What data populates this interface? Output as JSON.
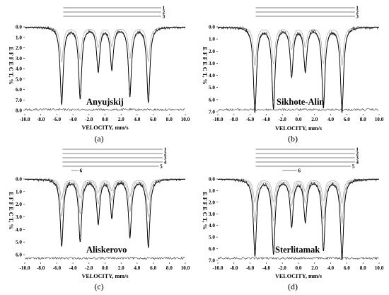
{
  "chart_data": [
    {
      "type": "line",
      "panel_caption": "(a)",
      "title": "Anyujskij",
      "xlabel": "VELOCITY, mm/s",
      "ylabel": "E F F E C T, %",
      "xlim": [
        -10.0,
        10.0
      ],
      "ylim": [
        0.0,
        8.0
      ],
      "x_ticks": [
        "-10.0",
        "-8.0",
        "-6.0",
        "-4.0",
        "-2.0",
        "0.0",
        "2.0",
        "4.0",
        "6.0",
        "8.0",
        "10.0"
      ],
      "y_ticks": [
        "0.0",
        "1.0",
        "2.0",
        "3.0",
        "4.0",
        "5.0",
        "6.0",
        "7.0",
        "8.0"
      ],
      "components": [
        "1",
        "2",
        "3"
      ],
      "component_lines": [
        {
          "label": "1",
          "x_start": -5.2,
          "x_end": 7.0
        },
        {
          "label": "2",
          "x_start": -5.2,
          "x_end": 7.0
        },
        {
          "label": "3",
          "x_start": -5.2,
          "x_end": 7.0
        }
      ],
      "peaks": [
        {
          "x": -5.4,
          "depth": 7.4
        },
        {
          "x": -3.1,
          "depth": 6.8
        },
        {
          "x": -0.85,
          "depth": 4.2
        },
        {
          "x": 0.85,
          "depth": 4.0
        },
        {
          "x": 3.1,
          "depth": 6.6
        },
        {
          "x": 5.4,
          "depth": 7.2
        }
      ]
    },
    {
      "type": "line",
      "panel_caption": "(b)",
      "title": "Sikhote-Alin",
      "xlabel": "VELOCITY, mm/s",
      "ylabel": "E F F E C T, %",
      "xlim": [
        -10.0,
        10.0
      ],
      "ylim": [
        0.0,
        7.0
      ],
      "x_ticks": [
        "-10.0",
        "-8.0",
        "-6.0",
        "-4.0",
        "-2.0",
        "0.0",
        "2.0",
        "4.0",
        "6.0",
        "8.0",
        "10.0"
      ],
      "y_ticks": [
        "0.0",
        "1.0",
        "2.0",
        "3.0",
        "4.0",
        "5.0",
        "6.0",
        "7.0"
      ],
      "components": [
        "1",
        "2",
        "3"
      ],
      "component_lines": [
        {
          "label": "1",
          "x_start": -5.3,
          "x_end": 7.0
        },
        {
          "label": "2",
          "x_start": -5.3,
          "x_end": 7.0
        },
        {
          "label": "3",
          "x_start": -5.3,
          "x_end": 7.0
        }
      ],
      "peaks": [
        {
          "x": -5.4,
          "depth": 7.0
        },
        {
          "x": -3.1,
          "depth": 6.7
        },
        {
          "x": -0.85,
          "depth": 4.0
        },
        {
          "x": 0.85,
          "depth": 3.6
        },
        {
          "x": 3.1,
          "depth": 6.6
        },
        {
          "x": 5.4,
          "depth": 7.0
        }
      ]
    },
    {
      "type": "line",
      "panel_caption": "(c)",
      "title": "Aliskerovo",
      "xlabel": "VELOCITY, mm/s",
      "ylabel": "E F F E C T, %",
      "xlim": [
        -10.0,
        10.0
      ],
      "ylim": [
        0.0,
        6.0
      ],
      "x_ticks": [
        "-10.0",
        "-8.0",
        "-6.0",
        "-4.0",
        "-2.0",
        "0.0",
        "2.0",
        "4.0",
        "6.0",
        "8.0",
        "10.0"
      ],
      "y_ticks": [
        "0.0",
        "1.0",
        "2.0",
        "3.0",
        "4.0",
        "5.0",
        "6.0"
      ],
      "components": [
        "1",
        "2",
        "3",
        "4",
        "5",
        "6"
      ],
      "component_lines": [
        {
          "label": "1",
          "x_start": -5.3,
          "x_end": 7.2
        },
        {
          "label": "2",
          "x_start": -5.3,
          "x_end": 7.2
        },
        {
          "label": "3",
          "x_start": -5.3,
          "x_end": 7.2
        },
        {
          "label": "4",
          "x_start": -5.3,
          "x_end": 7.2
        },
        {
          "label": "5",
          "x_start": -5.3,
          "x_end": 6.7
        },
        {
          "label": "6",
          "x_start": -4.2,
          "x_end": -3.3
        }
      ],
      "peaks": [
        {
          "x": -5.4,
          "depth": 5.3
        },
        {
          "x": -3.1,
          "depth": 4.9
        },
        {
          "x": -0.85,
          "depth": 3.5
        },
        {
          "x": 0.85,
          "depth": 3.0
        },
        {
          "x": 3.1,
          "depth": 4.6
        },
        {
          "x": 5.4,
          "depth": 5.4
        }
      ]
    },
    {
      "type": "line",
      "panel_caption": "(d)",
      "title": "Sterlitamak",
      "xlabel": "VELOCITY, mm/s",
      "ylabel": "E F F E C T, %",
      "xlim": [
        -10.0,
        10.0
      ],
      "ylim": [
        0.0,
        7.0
      ],
      "x_ticks": [
        "-10.0",
        "-8.0",
        "-6.0",
        "-4.0",
        "-2.0",
        "0.0",
        "2.0",
        "4.0",
        "6.0",
        "8.0",
        "10.0"
      ],
      "y_ticks": [
        "0.0",
        "1.0",
        "2.0",
        "3.0",
        "4.0",
        "5.0",
        "6.0",
        "7.0"
      ],
      "components": [
        "1",
        "2",
        "3",
        "4",
        "5",
        "6"
      ],
      "component_lines": [
        {
          "label": "1",
          "x_start": -5.3,
          "x_end": 7.0
        },
        {
          "label": "2",
          "x_start": -5.3,
          "x_end": 7.0
        },
        {
          "label": "3",
          "x_start": -5.3,
          "x_end": 7.0
        },
        {
          "label": "4",
          "x_start": -5.3,
          "x_end": 7.0
        },
        {
          "label": "5",
          "x_start": -5.3,
          "x_end": 6.5
        },
        {
          "label": "6",
          "x_start": -2.0,
          "x_end": -0.2
        }
      ],
      "peaks": [
        {
          "x": -5.4,
          "depth": 6.6
        },
        {
          "x": -3.1,
          "depth": 6.4
        },
        {
          "x": -0.85,
          "depth": 4.0
        },
        {
          "x": 0.85,
          "depth": 3.6
        },
        {
          "x": 3.1,
          "depth": 6.1
        },
        {
          "x": 5.4,
          "depth": 6.9
        }
      ]
    }
  ]
}
